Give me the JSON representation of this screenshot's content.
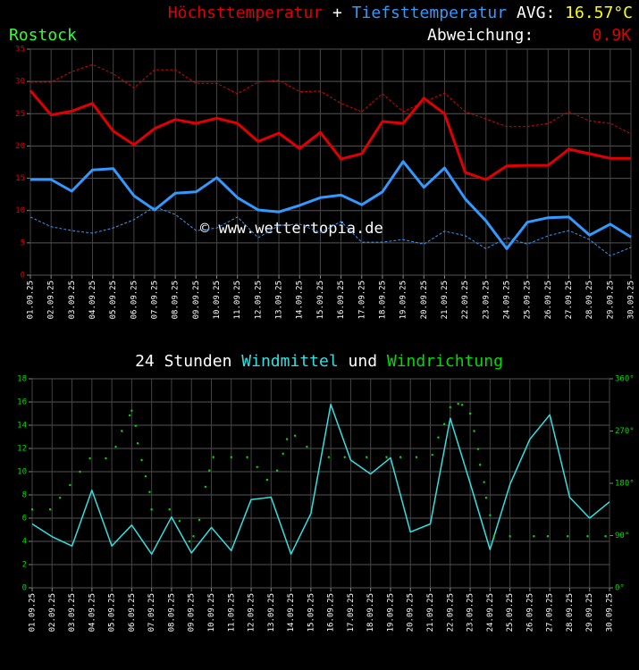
{
  "chart_data": [
    {
      "type": "line",
      "title_joiner": "+",
      "avg_label": "AVG:",
      "avg_value": "16.57°C",
      "location": "Rostock",
      "deviation_label": "Abweichung:",
      "deviation_value": "0.9K",
      "watermark": "© www.wettertopia.de",
      "x": [
        1,
        2,
        3,
        4,
        5,
        6,
        7,
        8,
        9,
        10,
        11,
        12,
        13,
        14,
        15,
        16,
        17,
        18,
        19,
        20,
        21,
        22,
        23,
        24,
        25,
        26,
        27,
        28,
        29,
        30
      ],
      "xlim": [
        1,
        30
      ],
      "xticks": [
        {
          "value": 1,
          "label": "01.09.25"
        },
        {
          "value": 2,
          "label": "02.09.25"
        },
        {
          "value": 3,
          "label": "03.09.25"
        },
        {
          "value": 4,
          "label": "04.09.25"
        },
        {
          "value": 5,
          "label": "05.09.25"
        },
        {
          "value": 6,
          "label": "06.09.25"
        },
        {
          "value": 7,
          "label": "07.09.25"
        },
        {
          "value": 8,
          "label": "08.09.25"
        },
        {
          "value": 9,
          "label": "09.09.25"
        },
        {
          "value": 10,
          "label": "10.09.25"
        },
        {
          "value": 11,
          "label": "11.09.25"
        },
        {
          "value": 12,
          "label": "12.09.25"
        },
        {
          "value": 13,
          "label": "13.09.25"
        },
        {
          "value": 14,
          "label": "14.09.25"
        },
        {
          "value": 15,
          "label": "15.09.25"
        },
        {
          "value": 16,
          "label": "16.09.25"
        },
        {
          "value": 17,
          "label": "17.09.25"
        },
        {
          "value": 18,
          "label": "18.09.25"
        },
        {
          "value": 19,
          "label": "19.09.25"
        },
        {
          "value": 20,
          "label": "20.09.25"
        },
        {
          "value": 21,
          "label": "21.09.25"
        },
        {
          "value": 22,
          "label": "22.09.25"
        },
        {
          "value": 23,
          "label": "23.09.25"
        },
        {
          "value": 24,
          "label": "24.09.25"
        },
        {
          "value": 25,
          "label": "25.09.25"
        },
        {
          "value": 26,
          "label": "26.09.25"
        },
        {
          "value": 27,
          "label": "27.09.25"
        },
        {
          "value": 28,
          "label": "28.09.25"
        },
        {
          "value": 29,
          "label": "29.09.25"
        },
        {
          "value": 30,
          "label": "30.09.25"
        }
      ],
      "ylim": [
        0,
        35
      ],
      "yticks": [
        0,
        5,
        10,
        15,
        20,
        25,
        30,
        35
      ],
      "grid": true,
      "series": [
        {
          "name": "Höchsttemperatur",
          "color": "#e00000",
          "values": [
            28.6,
            24.8,
            25.4,
            26.6,
            22.3,
            20.2,
            22.7,
            24.1,
            23.5,
            24.3,
            23.5,
            20.7,
            22.0,
            19.6,
            22.1,
            18.0,
            18.8,
            23.8,
            23.5,
            27.4,
            25.0,
            15.9,
            14.8,
            16.9,
            17.0,
            17.0,
            19.5,
            18.8,
            18.1,
            18.1
          ]
        },
        {
          "color": "#e00000",
          "dashed": true,
          "values": [
            29.9,
            29.9,
            31.5,
            32.6,
            31.2,
            29.0,
            31.8,
            31.8,
            29.7,
            29.7,
            28.1,
            29.9,
            30.2,
            28.4,
            28.5,
            26.6,
            25.3,
            28.1,
            25.3,
            26.8,
            28.2,
            25.3,
            24.2,
            23.0,
            23.0,
            23.5,
            25.3,
            23.9,
            23.5,
            21.9
          ]
        },
        {
          "name": "Tiefsttemperatur",
          "color": "#3399ff",
          "values": [
            14.8,
            14.8,
            13.0,
            16.3,
            16.5,
            12.3,
            10.1,
            12.7,
            12.9,
            15.1,
            12.0,
            10.1,
            9.8,
            10.8,
            12.0,
            12.4,
            10.9,
            12.9,
            17.6,
            13.6,
            16.6,
            11.8,
            8.4,
            4.1,
            8.2,
            8.9,
            9.0,
            6.2,
            7.9,
            5.9
          ]
        },
        {
          "color": "#3399ff",
          "dashed": true,
          "values": [
            9.0,
            7.5,
            6.9,
            6.5,
            7.3,
            8.6,
            10.6,
            9.4,
            6.9,
            7.3,
            9.0,
            5.8,
            7.7,
            7.9,
            6.6,
            8.3,
            5.1,
            5.1,
            5.5,
            4.8,
            6.8,
            6.1,
            4.1,
            5.8,
            4.8,
            6.1,
            6.9,
            5.5,
            3.0,
            4.3
          ]
        }
      ]
    },
    {
      "type": "line",
      "title_prefix": "24 Stunden",
      "title_joiner": "und",
      "x": [
        1,
        2,
        3,
        4,
        5,
        6,
        7,
        8,
        9,
        10,
        11,
        12,
        13,
        14,
        15,
        16,
        17,
        18,
        19,
        20,
        21,
        22,
        23,
        24,
        25,
        26,
        27,
        28,
        29,
        30
      ],
      "xlim": [
        1,
        30
      ],
      "xticks": [
        {
          "value": 1,
          "label": "01.09.25"
        },
        {
          "value": 2,
          "label": "02.09.25"
        },
        {
          "value": 3,
          "label": "03.09.25"
        },
        {
          "value": 4,
          "label": "04.09.25"
        },
        {
          "value": 5,
          "label": "05.09.25"
        },
        {
          "value": 6,
          "label": "06.09.25"
        },
        {
          "value": 7,
          "label": "07.09.25"
        },
        {
          "value": 8,
          "label": "08.09.25"
        },
        {
          "value": 9,
          "label": "09.09.25"
        },
        {
          "value": 10,
          "label": "10.09.25"
        },
        {
          "value": 11,
          "label": "11.09.25"
        },
        {
          "value": 12,
          "label": "12.09.25"
        },
        {
          "value": 13,
          "label": "13.09.25"
        },
        {
          "value": 14,
          "label": "14.09.25"
        },
        {
          "value": 15,
          "label": "15.09.25"
        },
        {
          "value": 16,
          "label": "16.09.25"
        },
        {
          "value": 17,
          "label": "17.09.25"
        },
        {
          "value": 18,
          "label": "18.09.25"
        },
        {
          "value": 19,
          "label": "19.09.25"
        },
        {
          "value": 20,
          "label": "20.09.25"
        },
        {
          "value": 21,
          "label": "21.09.25"
        },
        {
          "value": 22,
          "label": "22.09.25"
        },
        {
          "value": 23,
          "label": "23.09.25"
        },
        {
          "value": 24,
          "label": "24.09.25"
        },
        {
          "value": 25,
          "label": "25.09.25"
        },
        {
          "value": 26,
          "label": "26.09.25"
        },
        {
          "value": 27,
          "label": "27.09.25"
        },
        {
          "value": 28,
          "label": "28.09.25"
        },
        {
          "value": 29,
          "label": "29.09.25"
        },
        {
          "value": 30,
          "label": "30.09.25"
        }
      ],
      "ylim": [
        0,
        18
      ],
      "yticks": [
        0,
        2,
        4,
        6,
        8,
        10,
        12,
        14,
        16,
        18
      ],
      "y2lim": [
        0,
        360
      ],
      "y2ticks": [
        {
          "value": 0,
          "label": "0°"
        },
        {
          "value": 90,
          "label": "90°"
        },
        {
          "value": 180,
          "label": "180°"
        },
        {
          "value": 270,
          "label": "270°"
        },
        {
          "value": 360,
          "label": "360°"
        }
      ],
      "grid": true,
      "series": [
        {
          "name": "Windmittel",
          "color": "#33e0e0",
          "values": [
            5.5,
            4.4,
            3.6,
            8.4,
            3.6,
            5.4,
            2.9,
            6.1,
            3.0,
            5.2,
            3.2,
            7.6,
            7.8,
            2.9,
            6.4,
            15.8,
            11.0,
            9.8,
            11.2,
            4.8,
            5.5,
            14.6,
            9.0,
            3.3,
            8.9,
            12.8,
            14.9,
            7.8,
            6.0,
            7.4
          ]
        },
        {
          "name": "Windrichtung",
          "color": "#00dd00",
          "axis": "y2",
          "dots": true,
          "x": [
            1.0,
            1.9,
            2.4,
            2.9,
            3.4,
            3.9,
            4.7,
            5.2,
            5.5,
            5.9,
            6.0,
            6.2,
            6.3,
            6.5,
            6.7,
            6.9,
            7.0,
            7.9,
            8.4,
            8.9,
            9.1,
            9.4,
            9.7,
            9.9,
            10.1,
            11.0,
            11.8,
            12.3,
            12.8,
            13.3,
            13.6,
            13.8,
            14.2,
            14.8,
            15.9,
            16.7,
            17.8,
            18.8,
            19.5,
            20.3,
            21.1,
            21.4,
            21.7,
            22.0,
            22.4,
            22.6,
            23.0,
            23.2,
            23.4,
            23.5,
            23.7,
            23.8,
            24.0,
            24.2,
            25.0,
            26.2,
            26.9,
            27.9,
            28.9,
            29.8
          ],
          "values": [
            135,
            135,
            155,
            177,
            200,
            223,
            223,
            243,
            270,
            297,
            305,
            279,
            249,
            220,
            192,
            165,
            135,
            135,
            115,
            80,
            89,
            117,
            174,
            202,
            225,
            225,
            225,
            208,
            186,
            202,
            231,
            256,
            262,
            243,
            225,
            225,
            225,
            225,
            225,
            225,
            229,
            259,
            282,
            311,
            317,
            315,
            300,
            270,
            239,
            212,
            182,
            155,
            125,
            89,
            89,
            89,
            89,
            89,
            89,
            89
          ]
        }
      ]
    }
  ]
}
